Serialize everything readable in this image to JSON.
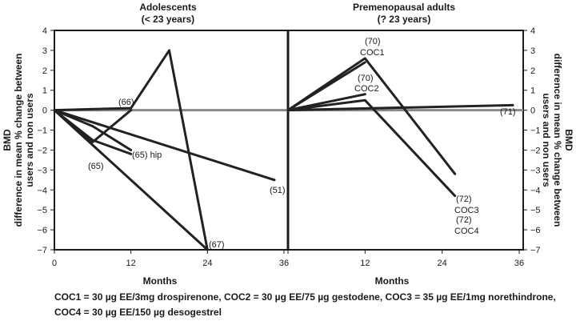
{
  "chart_data": [
    {
      "type": "line",
      "title": "Adolescents",
      "subtitle": "(< 23 years)",
      "xlabel": "Months",
      "ylabel": [
        "BMD",
        "difference in mean % change between",
        "users and non users"
      ],
      "xlim": [
        0,
        36
      ],
      "ylim": [
        -7,
        4
      ],
      "xticks": [
        0,
        12,
        24,
        36
      ],
      "yticks": [
        4,
        3,
        2,
        1,
        0,
        -1,
        -2,
        -3,
        -4,
        -5,
        -6,
        -7
      ],
      "reference_line": 0,
      "series": [
        {
          "label": "(66)",
          "x": [
            0,
            12,
            18,
            24
          ],
          "y": [
            0,
            0.1,
            3.0,
            -7.0
          ]
        },
        {
          "label": "(67)",
          "x": [
            0,
            24
          ],
          "y": [
            0,
            -7.0
          ]
        },
        {
          "label": "(51)",
          "x": [
            0,
            34.5
          ],
          "y": [
            0,
            -3.5
          ]
        },
        {
          "label": "(65) hip",
          "x": [
            0,
            6,
            12
          ],
          "y": [
            0,
            -0.8,
            -2.0
          ]
        },
        {
          "label": "(65)",
          "x": [
            0,
            6,
            12
          ],
          "y": [
            0,
            -1.5,
            -2.2
          ]
        },
        {
          "label": "",
          "x": [
            0,
            6,
            12
          ],
          "y": [
            0,
            -1.6,
            0
          ]
        }
      ]
    },
    {
      "type": "line",
      "title": "Premenopausal adults",
      "subtitle": "(? 23 years)",
      "xlabel": "Months",
      "ylabel": [
        "BMD",
        "difference in mean % change between",
        "users and non users"
      ],
      "xlim": [
        0,
        36
      ],
      "ylim": [
        -7,
        4
      ],
      "xticks": [
        0,
        12,
        24,
        36
      ],
      "yticks": [
        4,
        3,
        2,
        1,
        0,
        -1,
        -2,
        -3,
        -4,
        -5,
        -6,
        -7
      ],
      "reference_line": 0,
      "series": [
        {
          "label": "(70) COC1",
          "x": [
            0,
            12,
            26
          ],
          "y": [
            0,
            2.6,
            -3.2
          ]
        },
        {
          "label": "(70) COC2",
          "x": [
            0,
            12
          ],
          "y": [
            0,
            2.4
          ]
        },
        {
          "label": "(72) COC3",
          "x": [
            0,
            12
          ],
          "y": [
            0,
            0.8
          ]
        },
        {
          "label": "(72) COC4",
          "x": [
            0,
            12,
            26
          ],
          "y": [
            0,
            0.5,
            -4.3
          ]
        },
        {
          "label": "(71)",
          "x": [
            0,
            35
          ],
          "y": [
            0,
            0.25
          ]
        }
      ]
    }
  ],
  "panel_titles": {
    "left": "Adolescents",
    "left_sub": "(< 23 years)",
    "right": "Premenopausal adults",
    "right_sub": "(? 23 years)"
  },
  "axis_labels": {
    "x": "Months",
    "y_line1": "BMD",
    "y_line2": "difference in mean % change between",
    "y_line3": "users and non users"
  },
  "annotations": {
    "a66": "(66)",
    "a65hip": "(65) hip",
    "a65": "(65)",
    "a51": "(51)",
    "a67": "(67)",
    "a70_1": "(70)",
    "coc1": "COC1",
    "a70_2": "(70)",
    "coc2": "COC2",
    "a71": "(71)",
    "a72_3": "(72)",
    "coc3": "COC3",
    "a72_4": "(72)",
    "coc4": "COC4"
  },
  "footnote": {
    "line1": "COC1 = 30 µg EE/3mg drospirenone, COC2 = 30 µg EE/75 µg gestodene, COC3 = 35 µg EE/1mg norethindrone,",
    "line2": "COC4 = 30 µg EE/150 µg desogestrel"
  },
  "colors": {
    "series": "#222222",
    "zero_line": "#8a8a8a",
    "frame": "#1a1a1a"
  }
}
